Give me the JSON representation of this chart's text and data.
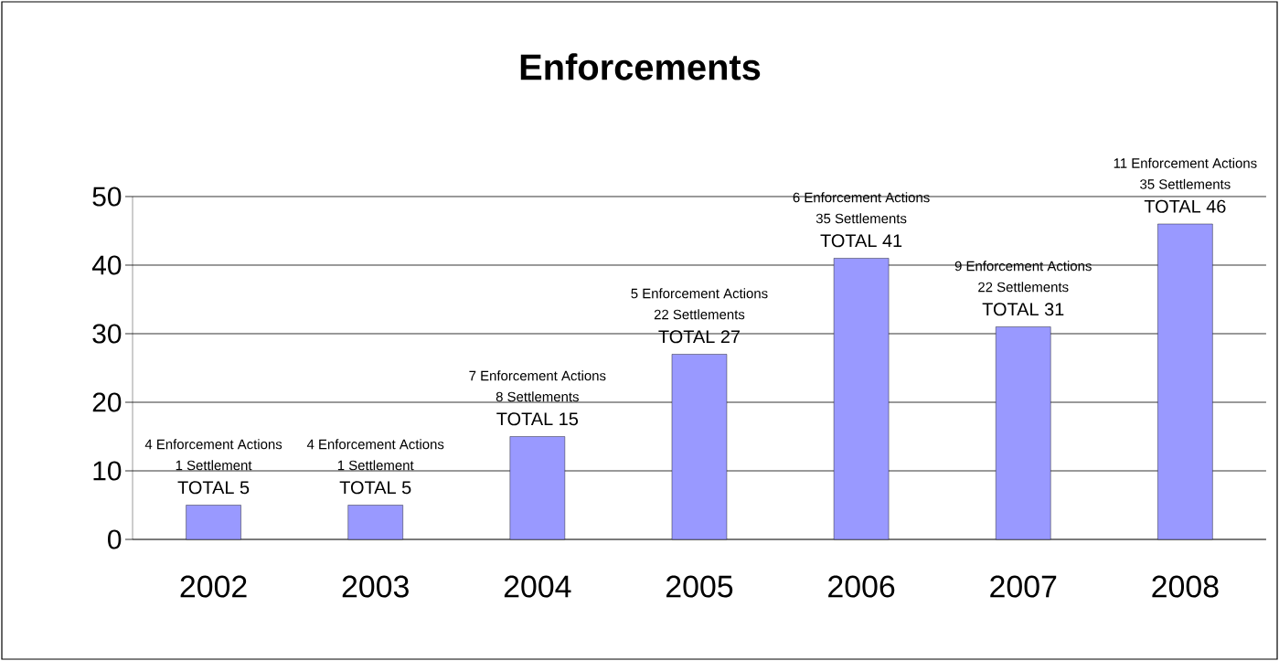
{
  "chart_data": {
    "type": "bar",
    "title": "Enforcements",
    "categories": [
      "2002",
      "2003",
      "2004",
      "2005",
      "2006",
      "2007",
      "2008"
    ],
    "values": [
      5,
      5,
      15,
      27,
      41,
      31,
      46
    ],
    "color": "#9999ff",
    "ylim": [
      0,
      50
    ],
    "yticks": [
      0,
      10,
      20,
      30,
      40,
      50
    ],
    "grid": "y",
    "annotations": [
      "4 Enforcement Actions",
      "1 Settlement",
      "TOTAL 5",
      "4 Enforcement Actions",
      "1 Settlement",
      "TOTAL 5",
      "7 Enforcement Actions",
      "8 Settlements",
      "TOTAL 15",
      "5 Enforcement Actions",
      "22 Settlements",
      "TOTAL 27",
      "6 Enforcement Actions",
      "35 Settlements",
      "TOTAL 41",
      "9 Enforcement Actions",
      "22 Settlements",
      "TOTAL 31",
      "11 Enforcement Actions",
      "35 Settlements",
      "TOTAL 46"
    ]
  }
}
